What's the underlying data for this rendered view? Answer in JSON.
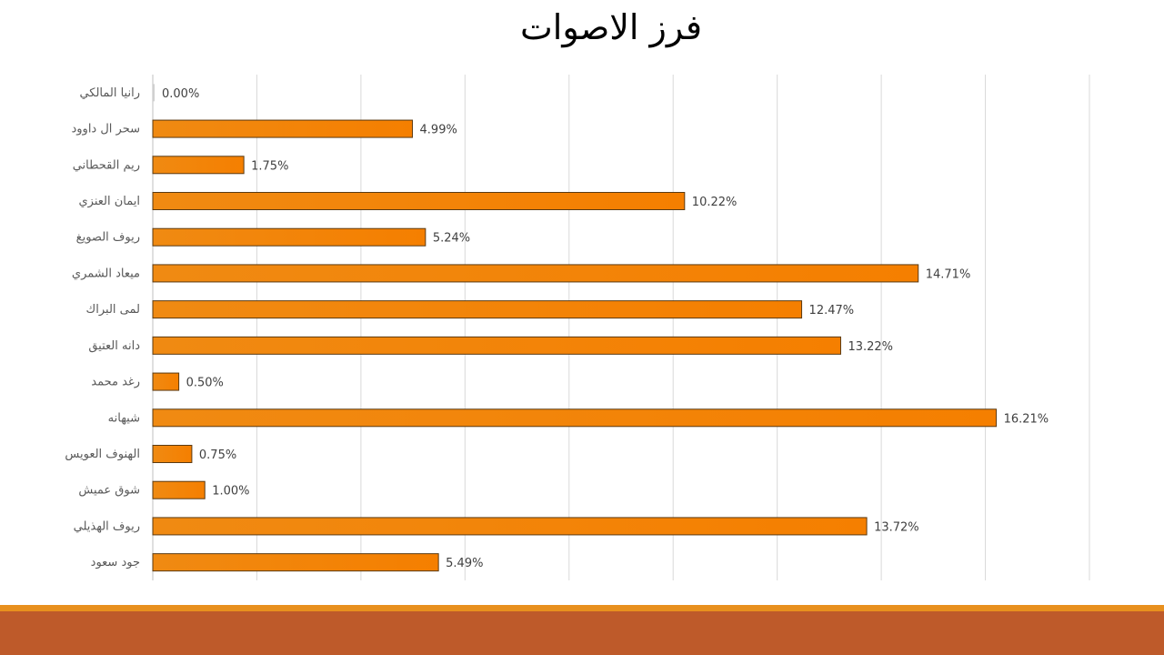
{
  "slide": {
    "title": "فرز الاصوات",
    "footer_stripe_color": "#E8901E",
    "footer_bar_color": "#BE5A2A"
  },
  "chart_data": {
    "type": "bar",
    "orientation": "horizontal",
    "title": "",
    "xlabel": "",
    "ylabel": "",
    "xlim": [
      0,
      18
    ],
    "gridlines": "vertical",
    "legend": "none",
    "bar_color": "#F58A0B",
    "bar_border_color": "#5A3A12",
    "value_format": "percent",
    "categories": [
      "رانيا المالكي",
      "سحر ال داوود",
      "ريم القحطاني",
      "ايمان العنزي",
      "ريوف الصويغ",
      "ميعاد الشمري",
      "لمى البراك",
      "دانه العتيق",
      "رغد محمد",
      "شيهانه",
      "الهنوف العويس",
      "شوق عميش",
      "ريوف الهذيلي",
      "جود سعود"
    ],
    "values": [
      0.0,
      4.99,
      1.75,
      10.22,
      5.24,
      14.71,
      12.47,
      13.22,
      0.5,
      16.21,
      0.75,
      1.0,
      13.72,
      5.49
    ],
    "labels": [
      "0.00%",
      "4.99%",
      "1.75%",
      "10.22%",
      "5.24%",
      "14.71%",
      "12.47%",
      "13.22%",
      "0.50%",
      "16.21%",
      "0.75%",
      "1.00%",
      "13.72%",
      "5.49%"
    ]
  }
}
